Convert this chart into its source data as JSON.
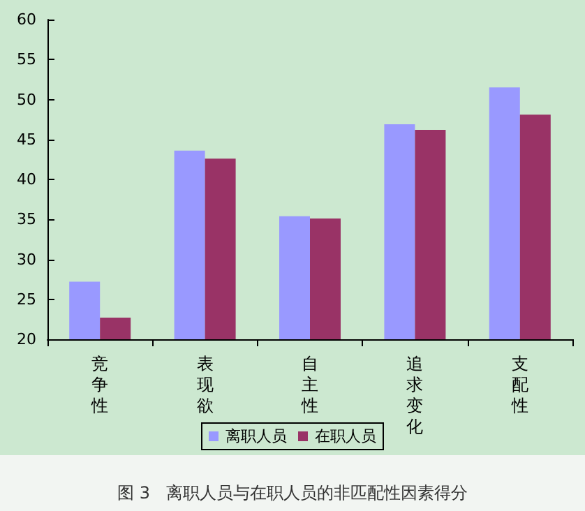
{
  "chart_data": {
    "type": "bar",
    "title": "图 3   离职人员与在职人员的非匹配性因素得分",
    "categories": [
      "竞争性",
      "表现欲",
      "自主性",
      "追求变化",
      "支配性"
    ],
    "series": [
      {
        "name": "离职人员",
        "color": "#9999ff",
        "values": [
          27.2,
          43.6,
          35.4,
          46.9,
          51.5
        ]
      },
      {
        "name": "在职人员",
        "color": "#993366",
        "values": [
          22.7,
          42.6,
          35.1,
          46.2,
          48.1
        ]
      }
    ],
    "ylim": [
      20,
      60
    ],
    "yticks": [
      20,
      25,
      30,
      35,
      40,
      45,
      50,
      55,
      60
    ],
    "grid": false,
    "legend": "bottom"
  }
}
